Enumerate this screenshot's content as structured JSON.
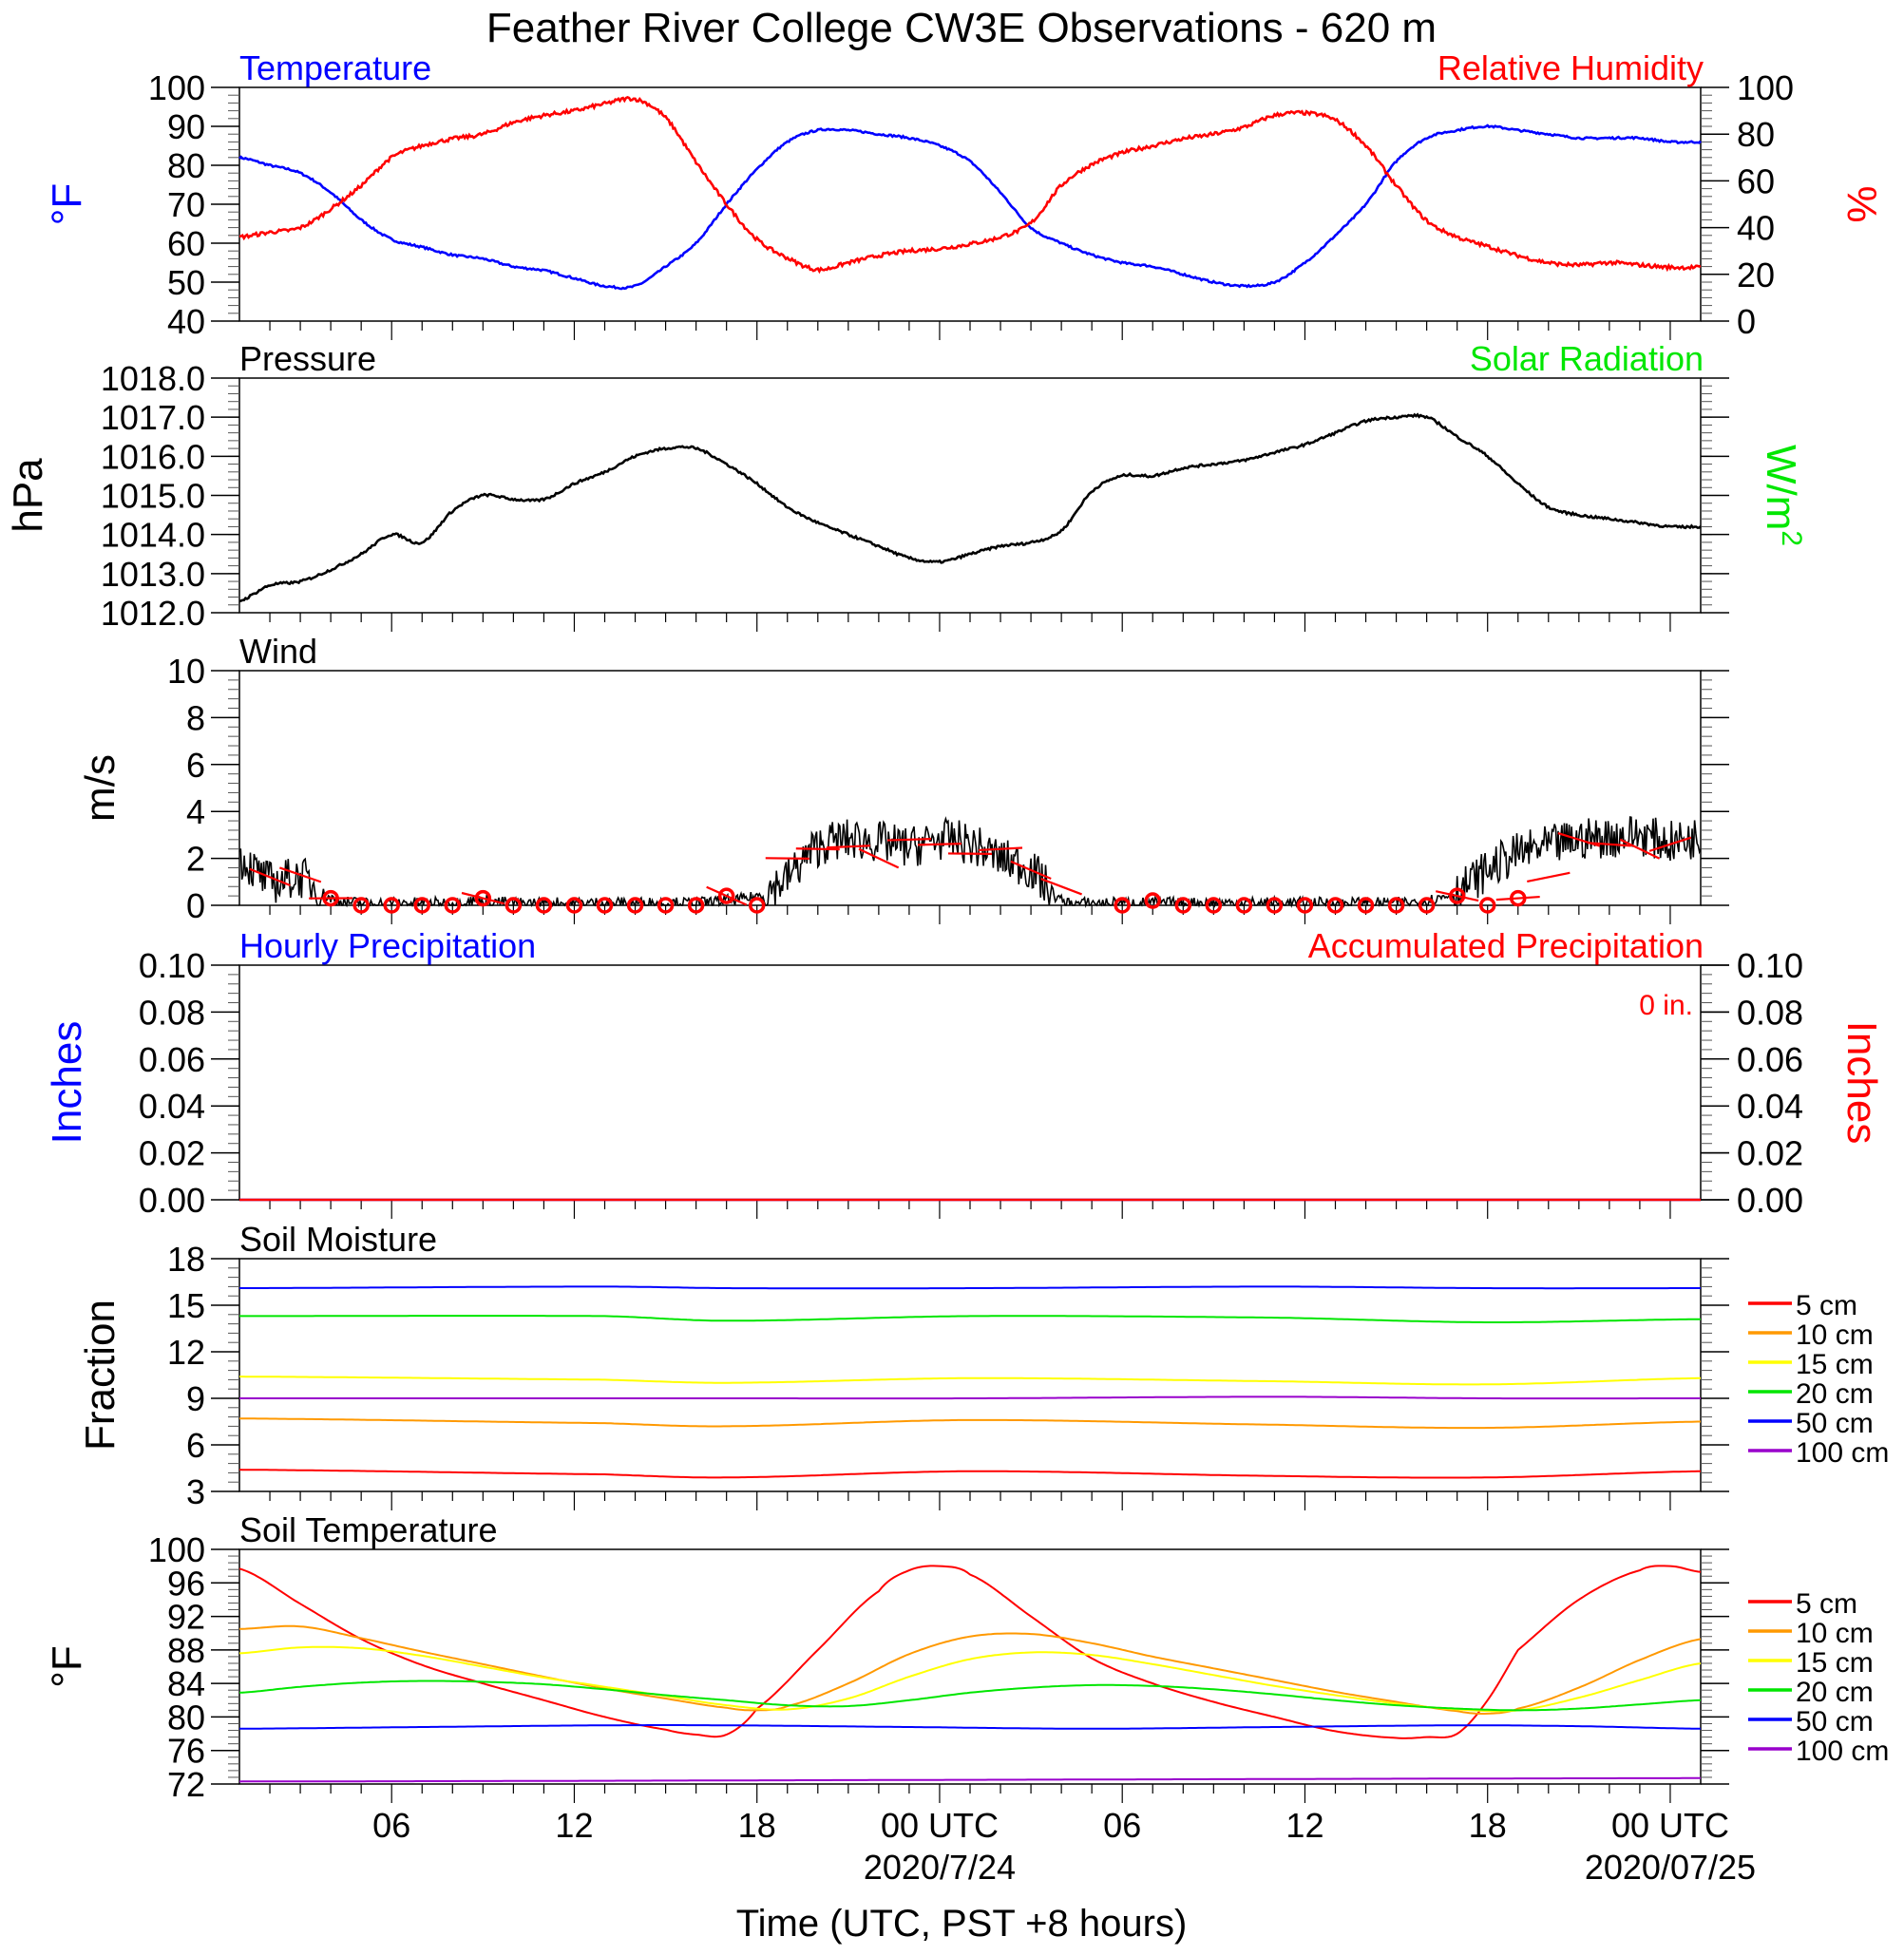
{
  "title": "Feather River College CW3E Observations - 620 m",
  "xlabel": "Time (UTC, PST +8 hours)",
  "xaxis": {
    "tick_labels": [
      "06",
      "12",
      "18",
      "00 UTC",
      "06",
      "12",
      "18",
      "00 UTC"
    ],
    "tick_hours": [
      6,
      12,
      18,
      24,
      30,
      36,
      42,
      48
    ],
    "date_labels": [
      "2020/7/24",
      "2020/07/25"
    ],
    "date_hours": [
      24,
      48
    ],
    "range_hours": [
      1,
      49
    ]
  },
  "colors": {
    "blue": "#0000ff",
    "red": "#ff0000",
    "green": "#00e600",
    "black": "#000000",
    "orange": "#ff9900",
    "yellow": "#ffff00",
    "purple": "#9900cc"
  },
  "chart_data": [
    {
      "id": "temp_rh",
      "type": "line",
      "title_left": "Temperature",
      "title_right": "Relative Humidity",
      "ylabel_left": "°F",
      "ylabel_right": "%",
      "ylim_left": [
        40,
        100
      ],
      "yticks_left": [
        40,
        50,
        60,
        70,
        80,
        90,
        100
      ],
      "ylim_right": [
        0,
        100
      ],
      "yticks_right": [
        0,
        20,
        40,
        60,
        80,
        100
      ],
      "series": [
        {
          "axis": "left",
          "color": "#0000ff",
          "x": [
            1,
            2,
            3,
            4,
            5,
            6,
            7,
            8,
            9,
            10,
            11,
            12,
            13,
            14,
            15,
            16,
            17,
            18,
            19,
            20,
            21,
            22,
            23,
            24,
            25,
            26,
            27,
            28,
            29,
            30,
            31,
            32,
            33,
            34,
            35,
            36,
            37,
            38,
            39,
            40,
            41,
            42,
            43,
            44,
            45,
            46,
            47,
            48,
            49
          ],
          "values": [
            82,
            80,
            78,
            73,
            66,
            61,
            59,
            57,
            56,
            54,
            53,
            51,
            49,
            49,
            54,
            60,
            70,
            79,
            86,
            89,
            89,
            88,
            87,
            85,
            81,
            73,
            64,
            60,
            57,
            55,
            54,
            52,
            50,
            49,
            50,
            55,
            62,
            70,
            81,
            87,
            89,
            90,
            89,
            88,
            87,
            87,
            87,
            86,
            86
          ]
        },
        {
          "axis": "right",
          "color": "#ff0000",
          "x": [
            1,
            2,
            3,
            4,
            5,
            6,
            7,
            8,
            9,
            10,
            11,
            12,
            13,
            14,
            15,
            16,
            17,
            18,
            19,
            20,
            21,
            22,
            23,
            24,
            25,
            26,
            27,
            28,
            29,
            30,
            31,
            32,
            33,
            34,
            35,
            36,
            37,
            38,
            39,
            40,
            41,
            42,
            43,
            44,
            45,
            46,
            47,
            48,
            49
          ],
          "values": [
            36,
            38,
            40,
            48,
            58,
            70,
            75,
            78,
            80,
            85,
            88,
            90,
            93,
            95,
            87,
            68,
            50,
            35,
            27,
            22,
            25,
            28,
            30,
            31,
            33,
            36,
            42,
            58,
            67,
            72,
            75,
            78,
            80,
            83,
            88,
            89,
            86,
            75,
            58,
            43,
            36,
            32,
            28,
            25,
            24,
            25,
            24,
            23,
            23
          ]
        }
      ]
    },
    {
      "id": "pressure",
      "type": "line",
      "title_left": "Pressure",
      "title_right": "Solar Radiation",
      "ylabel_left": "hPa",
      "ylabel_right": "W/m",
      "ylabel_right_sup": "2",
      "ylim_left": [
        1012,
        1018
      ],
      "yticks_left": [
        1012,
        1013,
        1014,
        1015,
        1016,
        1017,
        1018
      ],
      "ytick_labels_left": [
        "1012.0",
        "1013.0",
        "1014.0",
        "1015.0",
        "1016.0",
        "1017.0",
        "1018.0"
      ],
      "series": [
        {
          "axis": "left",
          "color": "#000000",
          "x": [
            1,
            2,
            3,
            4,
            5,
            6,
            7,
            8,
            9,
            10,
            11,
            12,
            13,
            14,
            15,
            16,
            17,
            18,
            19,
            20,
            21,
            22,
            23,
            24,
            25,
            26,
            27,
            28,
            29,
            30,
            31,
            32,
            33,
            34,
            35,
            36,
            37,
            38,
            39,
            40,
            41,
            42,
            43,
            44,
            45,
            46,
            47,
            48,
            49
          ],
          "values": [
            1012.3,
            1012.7,
            1012.8,
            1013.1,
            1013.5,
            1014.0,
            1013.8,
            1014.6,
            1015.0,
            1014.9,
            1014.9,
            1015.3,
            1015.6,
            1016.0,
            1016.2,
            1016.2,
            1015.8,
            1015.3,
            1014.7,
            1014.3,
            1014.0,
            1013.7,
            1013.4,
            1013.3,
            1013.5,
            1013.7,
            1013.8,
            1014.1,
            1015.1,
            1015.5,
            1015.5,
            1015.7,
            1015.8,
            1015.9,
            1016.1,
            1016.3,
            1016.6,
            1016.9,
            1017.0,
            1017.0,
            1016.5,
            1016.0,
            1015.3,
            1014.7,
            1014.5,
            1014.4,
            1014.3,
            1014.2,
            1014.2
          ]
        }
      ]
    },
    {
      "id": "wind",
      "type": "line",
      "title_left": "Wind",
      "ylabel_left": "m/s",
      "ylim_left": [
        0,
        10
      ],
      "yticks_left": [
        0,
        2,
        4,
        6,
        8,
        10
      ],
      "series": [
        {
          "axis": "left",
          "color": "#000000",
          "x": [
            1,
            2,
            3,
            4,
            5,
            6,
            7,
            8,
            9,
            10,
            11,
            12,
            13,
            14,
            15,
            16,
            17,
            18,
            19,
            20,
            21,
            22,
            23,
            24,
            25,
            26,
            27,
            28,
            29,
            30,
            31,
            32,
            33,
            34,
            35,
            36,
            37,
            38,
            39,
            40,
            41,
            42,
            43,
            44,
            45,
            46,
            47,
            48,
            49
          ],
          "values": [
            2.0,
            1.0,
            1.2,
            0.3,
            0.1,
            0.1,
            0.1,
            0.1,
            0.2,
            0.1,
            0.1,
            0.1,
            0.1,
            0.1,
            0.1,
            0.1,
            0.2,
            0.4,
            1.2,
            2.5,
            2.8,
            2.7,
            2.5,
            2.8,
            2.6,
            2.0,
            1.5,
            0.2,
            0.1,
            0.1,
            0.1,
            0.1,
            0.1,
            0.1,
            0.1,
            0.1,
            0.1,
            0.1,
            0.1,
            0.2,
            0.6,
            1.5,
            2.2,
            2.5,
            2.8,
            2.9,
            3.0,
            2.7,
            2.9
          ]
        }
      ],
      "barb_hours": [
        2,
        3,
        4,
        5,
        6,
        7,
        8,
        9,
        10,
        11,
        12,
        13,
        14,
        15,
        16,
        17,
        18,
        19,
        20,
        21,
        22,
        23,
        24,
        25,
        26,
        27,
        28,
        29,
        30,
        31,
        32,
        33,
        34,
        35,
        36,
        37,
        38,
        39,
        40,
        41,
        42,
        43,
        44,
        45,
        46,
        47,
        48
      ],
      "barb_speeds": [
        1.2,
        1.3,
        0.3,
        0,
        0,
        0,
        0,
        0.3,
        0,
        0,
        0,
        0,
        0,
        0,
        0,
        0.4,
        0,
        2.0,
        2.4,
        2.5,
        2.0,
        2.8,
        2.6,
        2.2,
        2.4,
        1.5,
        0.8,
        0,
        0,
        0.2,
        0,
        0,
        0,
        0,
        0,
        0,
        0,
        0,
        0,
        0.4,
        0,
        0.3,
        1.2,
        2.8,
        2.6,
        2.4,
        2.6
      ],
      "calm_circle_hours": [
        4,
        5,
        6,
        7,
        8,
        9,
        10,
        11,
        12,
        13,
        14,
        15,
        16,
        17,
        18,
        30,
        31,
        32,
        33,
        34,
        35,
        36,
        37,
        38,
        39,
        40,
        41,
        42,
        43
      ]
    },
    {
      "id": "precip",
      "type": "line",
      "title_left": "Hourly Precipitation",
      "title_right": "Accumulated Precipitation",
      "annotation": "0 in.",
      "ylabel_left": "Inches",
      "ylabel_right": "Inches",
      "ylim_left": [
        0,
        0.1
      ],
      "yticks_left": [
        0,
        0.02,
        0.04,
        0.06,
        0.08,
        0.1
      ],
      "ytick_labels_left": [
        "0.00",
        "0.02",
        "0.04",
        "0.06",
        "0.08",
        "0.10"
      ],
      "ytick_labels_right": [
        "0.00",
        "0.02",
        "0.04",
        "0.06",
        "0.08",
        "0.10"
      ],
      "series": [
        {
          "axis": "left",
          "color": "#0000ff",
          "x": [
            1,
            49
          ],
          "values": [
            0,
            0
          ]
        },
        {
          "axis": "left",
          "color": "#ff0000",
          "x": [
            1,
            49
          ],
          "values": [
            0,
            0
          ]
        }
      ]
    },
    {
      "id": "soil_moisture",
      "type": "line",
      "title_left": "Soil Moisture",
      "ylabel_left": "Fraction",
      "ylim_left": [
        3,
        18
      ],
      "yticks_left": [
        3,
        6,
        9,
        12,
        15,
        18
      ],
      "legend": [
        "5 cm",
        "10 cm",
        "15 cm",
        "20 cm",
        "50 cm",
        "100 cm"
      ],
      "series": [
        {
          "name": "5 cm",
          "color": "#ff0000",
          "x": [
            1,
            13,
            17,
            25,
            35,
            42,
            49
          ],
          "values": [
            4.4,
            4.1,
            3.9,
            4.3,
            4.0,
            3.9,
            4.3
          ]
        },
        {
          "name": "10 cm",
          "color": "#ff9900",
          "x": [
            1,
            13,
            17,
            25,
            35,
            42,
            49
          ],
          "values": [
            7.7,
            7.4,
            7.2,
            7.6,
            7.3,
            7.1,
            7.5
          ]
        },
        {
          "name": "15 cm",
          "color": "#ffff00",
          "x": [
            1,
            13,
            17,
            25,
            35,
            42,
            49
          ],
          "values": [
            10.4,
            10.2,
            10.0,
            10.3,
            10.1,
            9.9,
            10.3
          ]
        },
        {
          "name": "20 cm",
          "color": "#00e600",
          "x": [
            1,
            13,
            17,
            25,
            35,
            42,
            49
          ],
          "values": [
            14.3,
            14.3,
            14.0,
            14.3,
            14.2,
            13.9,
            14.1
          ]
        },
        {
          "name": "50 cm",
          "color": "#0000ff",
          "x": [
            1,
            13,
            17,
            25,
            35,
            42,
            49
          ],
          "values": [
            16.1,
            16.2,
            16.1,
            16.1,
            16.2,
            16.1,
            16.1
          ]
        },
        {
          "name": "100 cm",
          "color": "#9900cc",
          "x": [
            1,
            13,
            17,
            25,
            35,
            42,
            49
          ],
          "values": [
            9.0,
            9.0,
            9.0,
            9.0,
            9.1,
            9.0,
            9.0
          ]
        }
      ]
    },
    {
      "id": "soil_temp",
      "type": "line",
      "title_left": "Soil Temperature",
      "ylabel_left": "°F",
      "ylim_left": [
        72,
        100
      ],
      "yticks_left": [
        72,
        76,
        80,
        84,
        88,
        92,
        96,
        100
      ],
      "legend": [
        "5 cm",
        "10 cm",
        "15 cm",
        "20 cm",
        "50 cm",
        "100 cm"
      ],
      "series": [
        {
          "name": "5 cm",
          "color": "#ff0000",
          "x": [
            1,
            3,
            5,
            7,
            9,
            11,
            13,
            15,
            16,
            17,
            18,
            20,
            22,
            23,
            24,
            25,
            27,
            29,
            31,
            33,
            35,
            37,
            39,
            40,
            41,
            42,
            43,
            45,
            47,
            48,
            49
          ],
          "values": [
            97.7,
            93.5,
            89.3,
            86.2,
            84.0,
            82.0,
            80.0,
            78.5,
            77.9,
            77.9,
            81.0,
            88.0,
            95.0,
            97.5,
            98.0,
            97.0,
            92.0,
            87.0,
            84.0,
            81.8,
            80.0,
            78.3,
            77.5,
            77.6,
            78.0,
            82.0,
            88.0,
            94.0,
            97.5,
            98.0,
            97.3
          ]
        },
        {
          "name": "10 cm",
          "color": "#ff9900",
          "x": [
            1,
            3,
            5,
            7,
            9,
            11,
            13,
            15,
            17,
            18,
            19,
            21,
            23,
            25,
            27,
            29,
            31,
            33,
            35,
            37,
            39,
            41,
            42,
            43,
            45,
            47,
            49
          ],
          "values": [
            90.5,
            90.8,
            89.4,
            87.8,
            86.3,
            84.8,
            83.4,
            82.2,
            81.1,
            80.8,
            81.3,
            84.0,
            87.5,
            89.6,
            89.9,
            88.8,
            87.2,
            85.8,
            84.4,
            83.0,
            81.8,
            80.7,
            80.4,
            81.0,
            83.5,
            86.8,
            89.3
          ]
        },
        {
          "name": "15 cm",
          "color": "#ffff00",
          "x": [
            1,
            3,
            5,
            7,
            9,
            11,
            13,
            15,
            17,
            19,
            21,
            23,
            25,
            27,
            29,
            31,
            33,
            35,
            37,
            39,
            41,
            43,
            45,
            47,
            49
          ],
          "values": [
            87.6,
            88.3,
            88.2,
            87.3,
            86.0,
            84.7,
            83.6,
            82.5,
            81.4,
            80.9,
            82.2,
            84.8,
            86.9,
            87.7,
            87.4,
            86.3,
            85.0,
            83.7,
            82.6,
            81.6,
            80.9,
            80.8,
            82.3,
            84.4,
            86.4
          ]
        },
        {
          "name": "20 cm",
          "color": "#00e600",
          "x": [
            1,
            3,
            5,
            7,
            9,
            11,
            13,
            15,
            17,
            19,
            21,
            23,
            25,
            27,
            29,
            31,
            33,
            35,
            37,
            39,
            41,
            43,
            45,
            47,
            49
          ],
          "values": [
            82.9,
            83.6,
            84.1,
            84.3,
            84.2,
            83.9,
            83.3,
            82.6,
            82.0,
            81.4,
            81.3,
            82.0,
            82.9,
            83.5,
            83.8,
            83.7,
            83.3,
            82.7,
            82.0,
            81.4,
            81.0,
            80.8,
            81.0,
            81.5,
            82.0
          ]
        },
        {
          "name": "50 cm",
          "color": "#0000ff",
          "x": [
            1,
            7,
            13,
            17,
            23,
            29,
            35,
            41,
            45,
            49
          ],
          "values": [
            78.6,
            78.8,
            79.0,
            79.0,
            78.8,
            78.6,
            78.8,
            79.0,
            78.9,
            78.6
          ]
        },
        {
          "name": "100 cm",
          "color": "#9900cc",
          "x": [
            1,
            25,
            49
          ],
          "values": [
            72.3,
            72.5,
            72.7
          ]
        }
      ]
    }
  ]
}
